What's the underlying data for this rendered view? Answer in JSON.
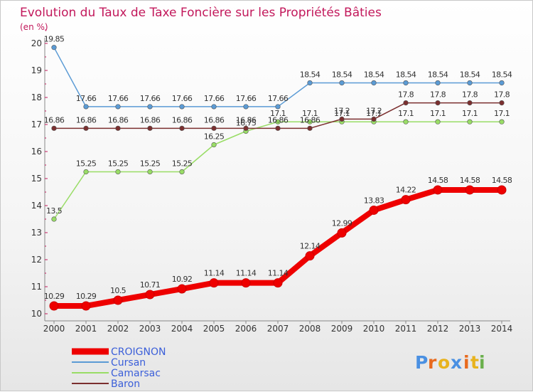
{
  "chart_data": {
    "type": "line",
    "title": "Evolution du Taux de Taxe Foncière sur les Propriétés Bâties",
    "ylabel": "(en %)",
    "xlabel": "",
    "x": [
      "2000",
      "2001",
      "2002",
      "2003",
      "2004",
      "2005",
      "2006",
      "2007",
      "2008",
      "2009",
      "2010",
      "2011",
      "2012",
      "2013",
      "2014"
    ],
    "ylim": [
      10,
      20
    ],
    "yticks": [
      "10",
      "11",
      "12",
      "13",
      "14",
      "15",
      "16",
      "17",
      "18",
      "19",
      "20"
    ],
    "series": [
      {
        "name": "Cursan",
        "color": "#5b9bd5",
        "values": [
          19.85,
          17.66,
          17.66,
          17.66,
          17.66,
          17.66,
          17.66,
          17.66,
          18.54,
          18.54,
          18.54,
          18.54,
          18.54,
          18.54,
          18.54
        ],
        "labels": [
          "19.85",
          "17.66",
          "17.66",
          "17.66",
          "17.66",
          "17.66",
          "17.66",
          "17.66",
          "18.54",
          "18.54",
          "18.54",
          "18.54",
          "18.54",
          "18.54",
          "18.54"
        ]
      },
      {
        "name": "Camarsac",
        "color": "#99dd66",
        "values": [
          13.5,
          15.25,
          15.25,
          15.25,
          15.25,
          16.25,
          16.75,
          17.1,
          17.1,
          17.1,
          17.1,
          17.1,
          17.1,
          17.1,
          17.1
        ],
        "labels": [
          "13.5",
          "15.25",
          "15.25",
          "15.25",
          "15.25",
          "16.25",
          "16.75",
          "17.1",
          "17.1",
          "17.1",
          "17.1",
          "17.1",
          "17.1",
          "17.1",
          "17.1"
        ]
      },
      {
        "name": "Baron",
        "color": "#7b2f2f",
        "values": [
          16.86,
          16.86,
          16.86,
          16.86,
          16.86,
          16.86,
          16.86,
          16.86,
          16.86,
          17.2,
          17.2,
          17.8,
          17.8,
          17.8,
          17.8
        ],
        "labels": [
          "16.86",
          "16.86",
          "16.86",
          "16.86",
          "16.86",
          "16.86",
          "16.86",
          "16.86",
          "16.86",
          "17.2",
          "17.2",
          "17.8",
          "17.8",
          "17.8",
          "17.8"
        ]
      },
      {
        "name": "CROIGNON",
        "color": "#ee0000",
        "values": [
          10.29,
          10.29,
          10.5,
          10.71,
          10.92,
          11.14,
          11.14,
          11.14,
          12.14,
          12.99,
          13.83,
          14.22,
          14.58,
          14.58,
          14.58
        ],
        "labels": [
          "10.29",
          "10.29",
          "10.5",
          "10.71",
          "10.92",
          "11.14",
          "11.14",
          "11.14",
          "12.14",
          "12.99",
          "13.83",
          "14.22",
          "14.58",
          "14.58",
          "14.58"
        ]
      }
    ],
    "legend": [
      "CROIGNON",
      "Cursan",
      "Camarsac",
      "Baron"
    ],
    "legend_position": "bottom-left",
    "grid": false
  },
  "brand": {
    "letters": [
      "P",
      "r",
      "o",
      "x",
      "i",
      "t",
      "i"
    ],
    "colors": [
      "#4a90e2",
      "#e86a1e",
      "#e8b31e",
      "#4a90e2",
      "#e86a1e",
      "#e8b31e",
      "#6ab04c"
    ]
  },
  "colors": {
    "title": "#c2185b",
    "axis": "#999999"
  }
}
